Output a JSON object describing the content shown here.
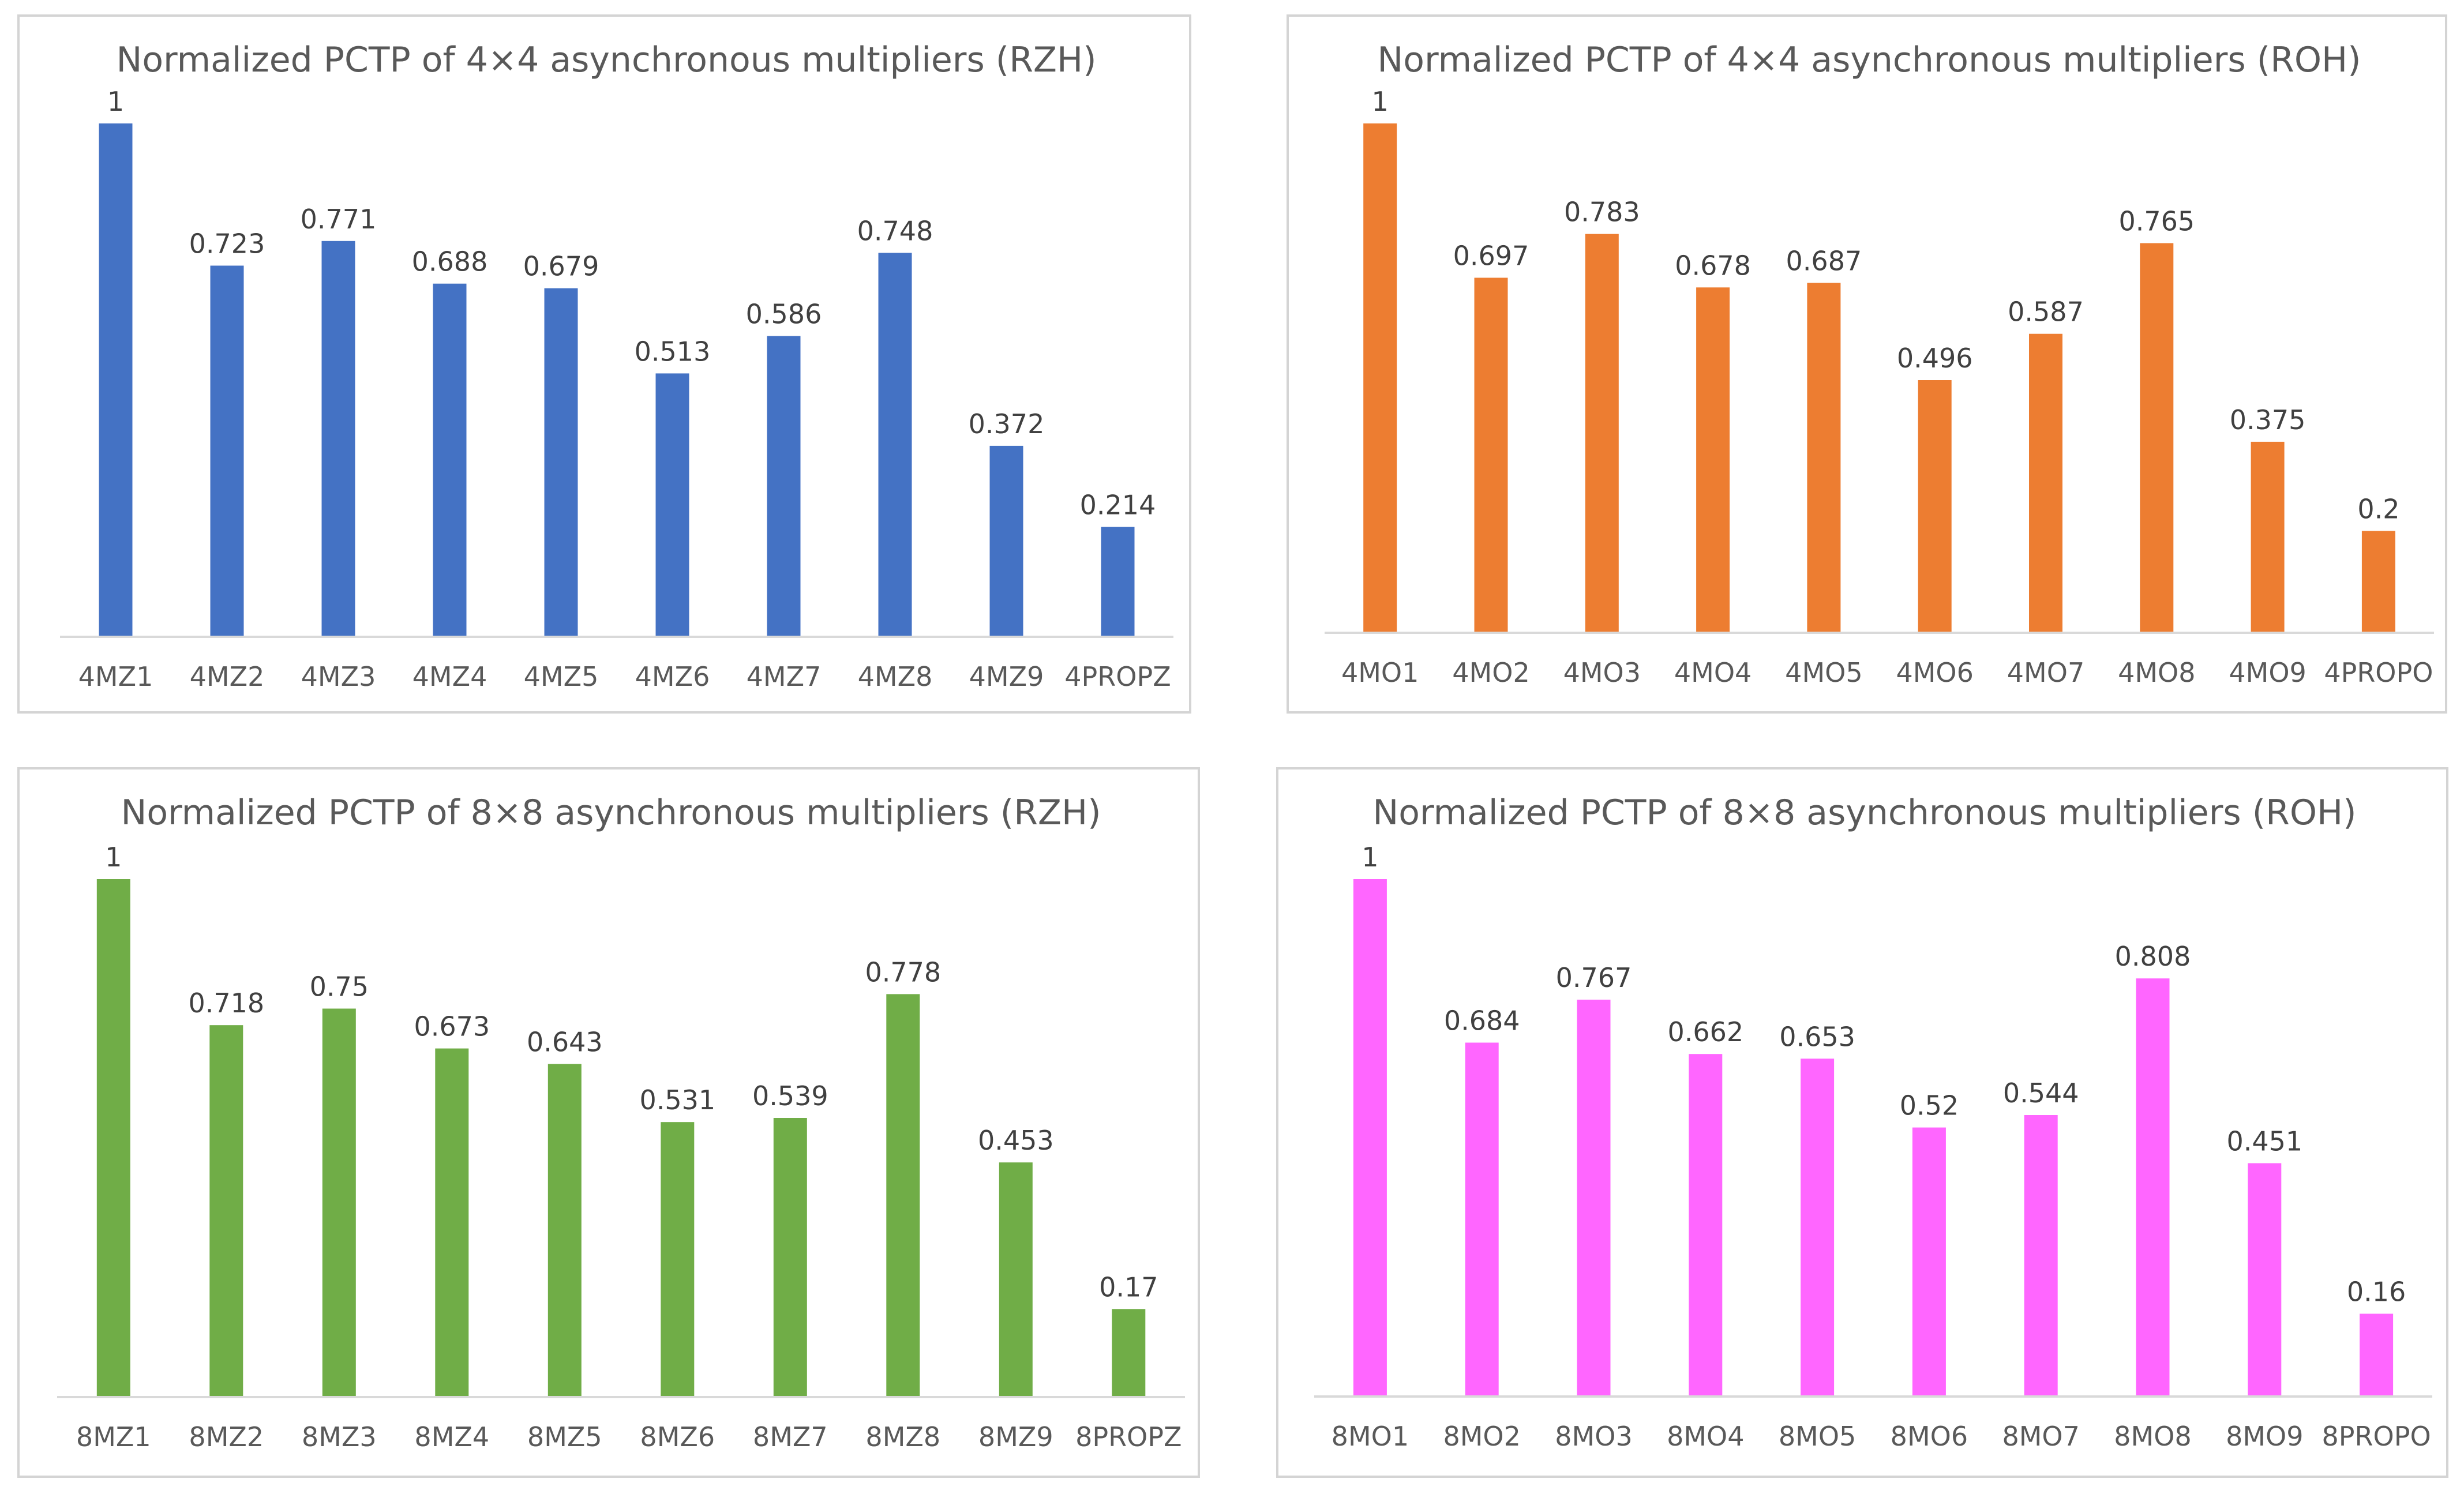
{
  "chart_data": [
    {
      "type": "bar",
      "title": "Normalized  PCTP of 4×4 asynchronous multipliers (RZH)",
      "categories": [
        "4MZ1",
        "4MZ2",
        "4MZ3",
        "4MZ4",
        "4MZ5",
        "4MZ6",
        "4MZ7",
        "4MZ8",
        "4MZ9",
        "4PROPZ"
      ],
      "values": [
        1,
        0.723,
        0.771,
        0.688,
        0.679,
        0.513,
        0.586,
        0.748,
        0.372,
        0.214
      ],
      "data_labels": [
        "1",
        "0.723",
        "0.771",
        "0.688",
        "0.679",
        "0.513",
        "0.586",
        "0.748",
        "0.372",
        "0.214"
      ],
      "color": "#4472c4",
      "ylim": [
        0,
        1
      ],
      "xlabel": "",
      "ylabel": "",
      "grid": false
    },
    {
      "type": "bar",
      "title": "Normalized  PCTP of 4×4 asynchronous multipliers (ROH)",
      "categories": [
        "4MO1",
        "4MO2",
        "4MO3",
        "4MO4",
        "4MO5",
        "4MO6",
        "4MO7",
        "4MO8",
        "4MO9",
        "4PROPO"
      ],
      "values": [
        1,
        0.697,
        0.783,
        0.678,
        0.687,
        0.496,
        0.587,
        0.765,
        0.375,
        0.2
      ],
      "data_labels": [
        "1",
        "0.697",
        "0.783",
        "0.678",
        "0.687",
        "0.496",
        "0.587",
        "0.765",
        "0.375",
        "0.2"
      ],
      "color": "#ed7d31",
      "ylim": [
        0,
        1
      ],
      "xlabel": "",
      "ylabel": "",
      "grid": false
    },
    {
      "type": "bar",
      "title": "Normalized  PCTP of 8×8 asynchronous multipliers (RZH)",
      "categories": [
        "8MZ1",
        "8MZ2",
        "8MZ3",
        "8MZ4",
        "8MZ5",
        "8MZ6",
        "8MZ7",
        "8MZ8",
        "8MZ9",
        "8PROPZ"
      ],
      "values": [
        1,
        0.718,
        0.75,
        0.673,
        0.643,
        0.531,
        0.539,
        0.778,
        0.453,
        0.17
      ],
      "data_labels": [
        "1",
        "0.718",
        "0.75",
        "0.673",
        "0.643",
        "0.531",
        "0.539",
        "0.778",
        "0.453",
        "0.17"
      ],
      "color": "#70ad47",
      "ylim": [
        0,
        1
      ],
      "xlabel": "",
      "ylabel": "",
      "grid": false
    },
    {
      "type": "bar",
      "title": "Normalized  PCTP of 8×8 asynchronous multipliers (ROH)",
      "categories": [
        "8MO1",
        "8MO2",
        "8MO3",
        "8MO4",
        "8MO5",
        "8MO6",
        "8MO7",
        "8MO8",
        "8MO9",
        "8PROPO"
      ],
      "values": [
        1,
        0.684,
        0.767,
        0.662,
        0.653,
        0.52,
        0.544,
        0.808,
        0.451,
        0.16
      ],
      "data_labels": [
        "1",
        "0.684",
        "0.767",
        "0.662",
        "0.653",
        "0.52",
        "0.544",
        "0.808",
        "0.451",
        "0.16"
      ],
      "color": "#ff66ff",
      "ylim": [
        0,
        1
      ],
      "xlabel": "",
      "ylabel": "",
      "grid": false
    }
  ],
  "axis_color": "#d9d9d9"
}
